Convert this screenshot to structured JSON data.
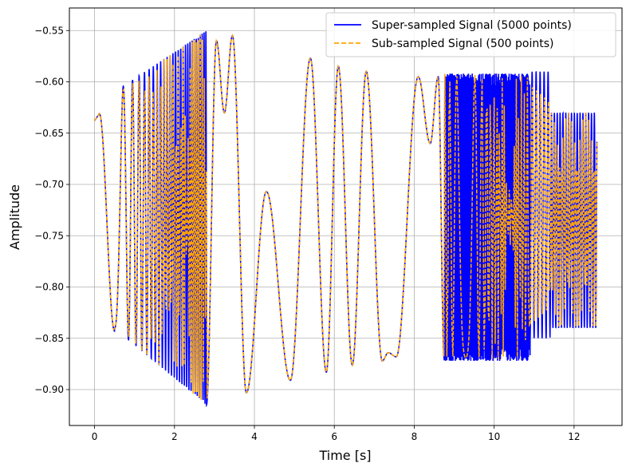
{
  "chart_data": {
    "type": "line",
    "title": "",
    "xlabel": "Time [s]",
    "ylabel": "Amplitude",
    "xlim": [
      -0.63,
      13.2
    ],
    "ylim": [
      -0.935,
      -0.528
    ],
    "xticks": [
      0,
      2,
      4,
      6,
      8,
      10,
      12
    ],
    "xtick_labels": [
      "0",
      "2",
      "4",
      "6",
      "8",
      "10",
      "12"
    ],
    "yticks": [
      -0.9,
      -0.85,
      -0.8,
      -0.75,
      -0.7,
      -0.65,
      -0.6,
      -0.55
    ],
    "ytick_labels": [
      "−0.90",
      "−0.85",
      "−0.80",
      "−0.75",
      "−0.70",
      "−0.65",
      "−0.60",
      "−0.55"
    ],
    "grid": true,
    "legend_position": "top-right",
    "series": [
      {
        "name": "Super-sampled Signal (5000 points)",
        "color": "#0000ff",
        "style": "solid",
        "points": 5000
      },
      {
        "name": "Sub-sampled Signal (500 points)",
        "color": "#ffa500",
        "style": "dashed",
        "points": 500
      }
    ],
    "x_range": [
      0,
      12.57
    ],
    "envelope_keypoints": [
      {
        "t": 0.0,
        "y": -0.638
      },
      {
        "t": 0.12,
        "y": -0.631
      },
      {
        "t": 0.3,
        "y": -0.66
      },
      {
        "t": 0.5,
        "y": -0.843
      },
      {
        "t": 0.9,
        "y": -0.61
      },
      {
        "t": 2.8,
        "y": -0.915
      },
      {
        "t": 3.0,
        "y": -0.56
      },
      {
        "t": 3.4,
        "y": -0.555
      },
      {
        "t": 3.8,
        "y": -0.903
      },
      {
        "t": 4.3,
        "y": -0.707
      },
      {
        "t": 4.9,
        "y": -0.891
      },
      {
        "t": 5.4,
        "y": -0.577
      },
      {
        "t": 5.8,
        "y": -0.883
      },
      {
        "t": 6.1,
        "y": -0.585
      },
      {
        "t": 6.45,
        "y": -0.876
      },
      {
        "t": 6.8,
        "y": -0.59
      },
      {
        "t": 7.2,
        "y": -0.872
      },
      {
        "t": 7.35,
        "y": -0.864
      },
      {
        "t": 7.5,
        "y": -0.868
      },
      {
        "t": 8.1,
        "y": -0.595
      },
      {
        "t": 8.4,
        "y": -0.66
      },
      {
        "t": 8.6,
        "y": -0.595
      },
      {
        "t": 12.57,
        "y": -0.735
      }
    ]
  }
}
